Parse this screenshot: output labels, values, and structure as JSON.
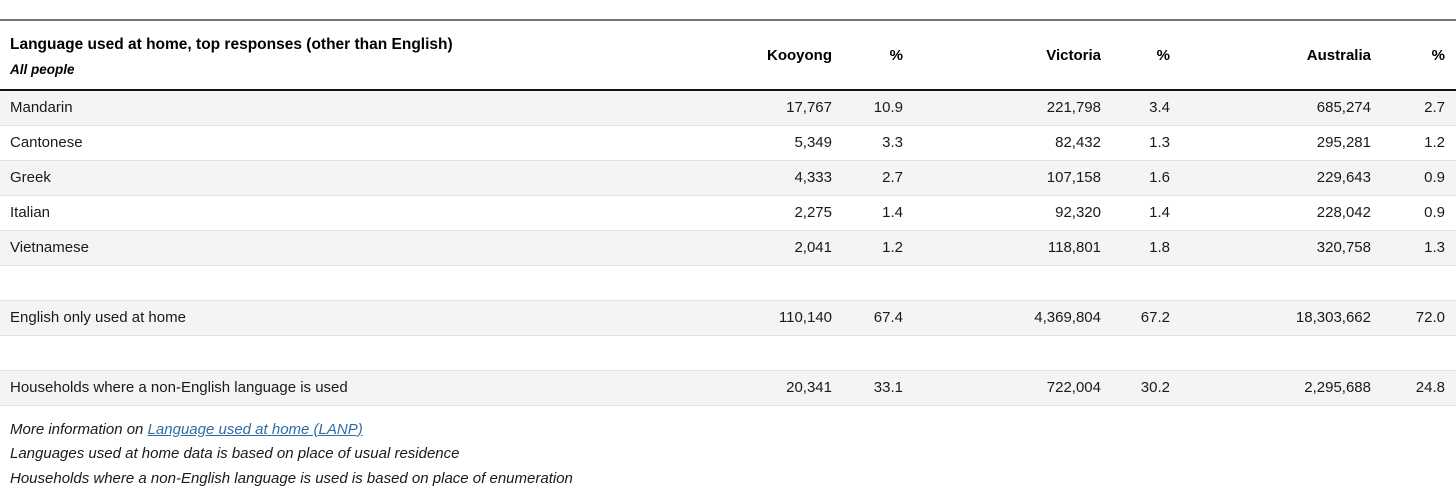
{
  "table": {
    "title": "Language used at home, top responses (other than English)",
    "subtitle": "All people",
    "columns": [
      "Kooyong",
      "%",
      "Victoria",
      "%",
      "Australia",
      "%"
    ],
    "rows": [
      {
        "label": "Mandarin",
        "values": [
          "17,767",
          "10.9",
          "221,798",
          "3.4",
          "685,274",
          "2.7"
        ]
      },
      {
        "label": "Cantonese",
        "values": [
          "5,349",
          "3.3",
          "82,432",
          "1.3",
          "295,281",
          "1.2"
        ]
      },
      {
        "label": "Greek",
        "values": [
          "4,333",
          "2.7",
          "107,158",
          "1.6",
          "229,643",
          "0.9"
        ]
      },
      {
        "label": "Italian",
        "values": [
          "2,275",
          "1.4",
          "92,320",
          "1.4",
          "228,042",
          "0.9"
        ]
      },
      {
        "label": "Vietnamese",
        "values": [
          "2,041",
          "1.2",
          "118,801",
          "1.8",
          "320,758",
          "1.3"
        ]
      }
    ],
    "summary_rows": [
      {
        "label": "English only used at home",
        "values": [
          "110,140",
          "67.4",
          "4,369,804",
          "67.2",
          "18,303,662",
          "72.0"
        ]
      },
      {
        "label": "Households where a non-English language is used",
        "values": [
          "20,341",
          "33.1",
          "722,004",
          "30.2",
          "2,295,688",
          "24.8"
        ]
      }
    ]
  },
  "footer": {
    "more_info_prefix": "More information on ",
    "link_text": "Language used at home (LANP)",
    "note_residence": "Languages used at home data is based on place of usual residence",
    "note_enumeration": "Households where a non-English language is used is based on place of enumeration"
  },
  "colors": {
    "link_blue": "#2e6da4",
    "row_shade": "#f4f4f4",
    "border_light": "#e2e2e2",
    "border_dark": "#141414",
    "border_top_gray": "#767676",
    "text": "#1a1a1a"
  },
  "chart_data": {
    "type": "table",
    "title": "Language used at home, top responses (other than English)",
    "subtitle": "All people",
    "columns": [
      "Language",
      "Kooyong",
      "%",
      "Victoria",
      "%",
      "Australia",
      "%"
    ],
    "rows": [
      [
        "Mandarin",
        17767,
        10.9,
        221798,
        3.4,
        685274,
        2.7
      ],
      [
        "Cantonese",
        5349,
        3.3,
        82432,
        1.3,
        295281,
        1.2
      ],
      [
        "Greek",
        4333,
        2.7,
        107158,
        1.6,
        229643,
        0.9
      ],
      [
        "Italian",
        2275,
        1.4,
        92320,
        1.4,
        228042,
        0.9
      ],
      [
        "Vietnamese",
        2041,
        1.2,
        118801,
        1.8,
        320758,
        1.3
      ],
      [
        "English only used at home",
        110140,
        67.4,
        4369804,
        67.2,
        18303662,
        72.0
      ],
      [
        "Households where a non-English language is used",
        20341,
        33.1,
        722004,
        30.2,
        2295688,
        24.8
      ]
    ]
  }
}
